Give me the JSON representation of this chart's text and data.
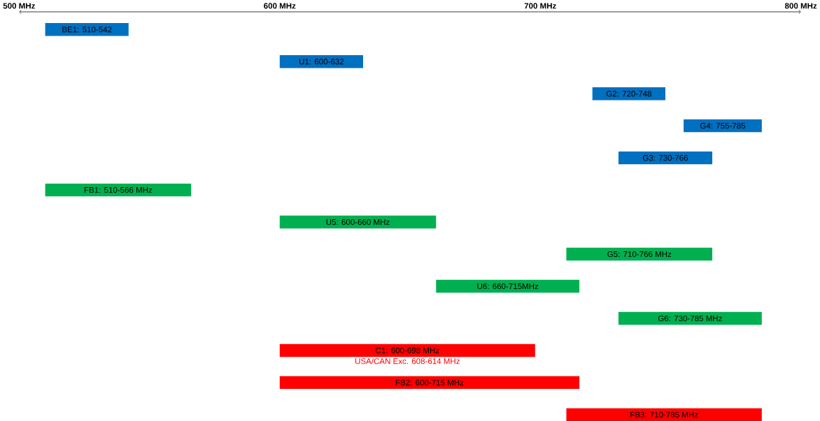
{
  "chart_data": {
    "type": "bar",
    "orientation": "horizontal",
    "categories": [
      "BE1: 510-542",
      "U1: 600-632",
      "G2: 720-748",
      "G4: 755-785",
      "G3: 730-766",
      "FB1: 510-566 MHz",
      "U5: 600-660 MHz",
      "G5: 710-766 MHz",
      "U6: 660-715MHz",
      "G6: 730-785 MHz",
      "C1: 600-698 MHz",
      "FB2: 600-715 MHz",
      "FB3: 710-785 MHz"
    ],
    "base": [
      510,
      600,
      720,
      755,
      730,
      510,
      600,
      710,
      660,
      730,
      600,
      600,
      710
    ],
    "values": [
      32,
      32,
      28,
      30,
      36,
      56,
      60,
      56,
      55,
      55,
      98,
      115,
      75
    ],
    "colors": [
      "#0070c0",
      "#0070c0",
      "#0070c0",
      "#0070c0",
      "#0070c0",
      "#00b050",
      "#00b050",
      "#00b050",
      "#00b050",
      "#00b050",
      "#ff0000",
      "#ff0000",
      "#ff0000"
    ],
    "xlim": [
      500,
      800
    ],
    "xticks": [
      {
        "value": 500,
        "label": "500 MHz"
      },
      {
        "value": 600,
        "label": "600 MHz"
      },
      {
        "value": 700,
        "label": "700 MHz"
      },
      {
        "value": 800,
        "label": "800 MHz"
      }
    ],
    "tick_labels": "x",
    "value_labels": [
      null,
      null,
      null,
      null,
      null,
      null,
      null,
      null,
      null,
      null,
      "USA/CAN Exc. 608-614 MHz",
      null,
      null
    ]
  }
}
